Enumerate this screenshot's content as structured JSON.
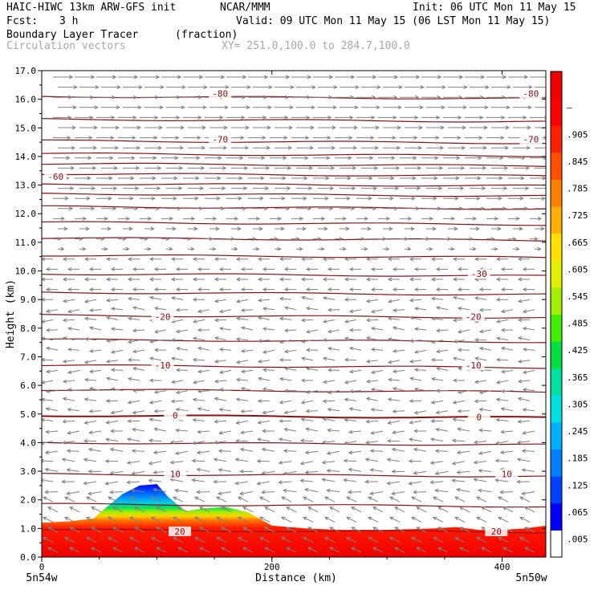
{
  "header": {
    "model_line": "HAIC-HIWC 13km ARW-GFS init",
    "org": "NCAR/MMM",
    "init": "Init: 06 UTC Mon 11 May 15",
    "fcst_label": "Fcst:",
    "fcst_value": "3 h",
    "valid": "Valid: 09 UTC Mon 11 May 15 (06 LST Mon 11 May 15)",
    "field_name": "Boundary Layer Tracer",
    "field_units": "(fraction)",
    "vector_field": "Circulation vectors",
    "xy_range": "XY= 251.0,100.0 to 284.7,100.0"
  },
  "chart_data": {
    "type": "heatmap",
    "title": "Boundary Layer Tracer",
    "xlabel": "Distance (km)",
    "ylabel": "Height (km)",
    "xlim": [
      0,
      438
    ],
    "ylim": [
      0,
      17
    ],
    "x_ticks": [
      "0",
      "200",
      "400"
    ],
    "x_tick_values": [
      0,
      200,
      400
    ],
    "y_ticks": [
      "0.0",
      "1.0",
      "2.0",
      "3.0",
      "4.0",
      "5.0",
      "6.0",
      "7.0",
      "8.0",
      "9.0",
      "10.0",
      "11.0",
      "12.0",
      "13.0",
      "14.0",
      "15.0",
      "16.0",
      "17.0"
    ],
    "x_end_labels": {
      "left": "5n54w",
      "right": "5n50w"
    },
    "colorbar": {
      "labels": [
        ".005",
        ".065",
        ".125",
        ".185",
        ".245",
        ".305",
        ".365",
        ".425",
        ".485",
        ".545",
        ".605",
        ".665",
        ".725",
        ".785",
        ".845",
        ".905",
        "–"
      ],
      "colors": [
        "#ffffff",
        "#0000ff",
        "#0040ff",
        "#0080ff",
        "#00b0ff",
        "#00e0e0",
        "#00e0a0",
        "#00e040",
        "#40f000",
        "#a0f000",
        "#e0f000",
        "#ffe000",
        "#ffb000",
        "#ff8000",
        "#ff5000",
        "#ff2000",
        "#ff0000",
        "#f00000"
      ]
    },
    "tracer_top_km": {
      "x": [
        0,
        25,
        45,
        55,
        70,
        85,
        100,
        110,
        125,
        140,
        160,
        180,
        200,
        230,
        260,
        300,
        340,
        360,
        380,
        400,
        420,
        438
      ],
      "y": [
        1.2,
        1.25,
        1.35,
        1.7,
        2.2,
        2.5,
        2.55,
        2.1,
        1.6,
        1.7,
        1.75,
        1.55,
        1.1,
        1.0,
        0.95,
        0.95,
        1.0,
        1.05,
        0.95,
        0.95,
        1.0,
        1.1
      ]
    },
    "contour_labels": [
      {
        "text": "-80",
        "x": 155,
        "y": 16.2
      },
      {
        "text": "-80",
        "x": 425,
        "y": 16.2
      },
      {
        "text": "-70",
        "x": 155,
        "y": 14.6
      },
      {
        "text": "-70",
        "x": 425,
        "y": 14.6
      },
      {
        "text": "-60",
        "x": 12,
        "y": 13.3
      },
      {
        "text": "-30",
        "x": 380,
        "y": 9.9
      },
      {
        "text": "-20",
        "x": 105,
        "y": 8.4
      },
      {
        "text": "-20",
        "x": 375,
        "y": 8.4
      },
      {
        "text": "-10",
        "x": 105,
        "y": 6.7
      },
      {
        "text": "-10",
        "x": 375,
        "y": 6.7
      },
      {
        "text": "0",
        "x": 116,
        "y": 4.95
      },
      {
        "text": "0",
        "x": 380,
        "y": 4.9
      },
      {
        "text": "10",
        "x": 116,
        "y": 2.9
      },
      {
        "text": "10",
        "x": 404,
        "y": 2.9
      },
      {
        "text": "20",
        "x": 120,
        "y": 0.9
      },
      {
        "text": "20",
        "x": 395,
        "y": 0.9
      }
    ]
  }
}
